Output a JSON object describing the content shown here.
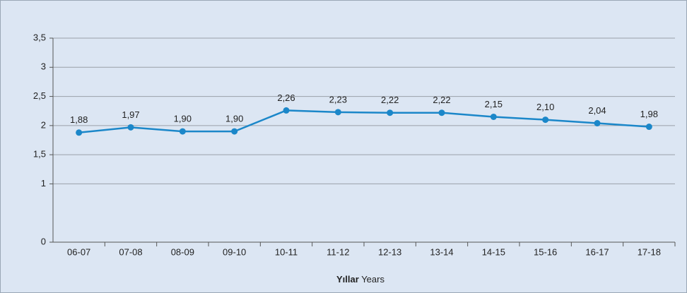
{
  "chart_data": {
    "type": "line",
    "categories": [
      "06-07",
      "07-08",
      "08-09",
      "09-10",
      "10-11",
      "11-12",
      "12-13",
      "13-14",
      "14-15",
      "15-16",
      "16-17",
      "17-18"
    ],
    "series": [
      {
        "color": "#1b87c9",
        "values": [
          1.88,
          1.97,
          1.9,
          1.9,
          2.26,
          2.23,
          2.22,
          2.22,
          2.15,
          2.1,
          2.04,
          1.98
        ],
        "value_labels": [
          "1,88",
          "1,97",
          "1,90",
          "1,90",
          "2,26",
          "2,23",
          "2,22",
          "2,22",
          "2,15",
          "2,10",
          "2,04",
          "1,98"
        ]
      }
    ],
    "ylim": [
      0,
      3.5
    ],
    "yticks": [
      0,
      1,
      {
        "value": 1.5,
        "label": "1,5"
      },
      2,
      {
        "value": 2.5,
        "label": "2,5"
      },
      3,
      {
        "value": 3.5,
        "label": "3,5"
      }
    ],
    "grid": true,
    "xlabel_bold": "Yıllar",
    "xlabel": "Years"
  }
}
